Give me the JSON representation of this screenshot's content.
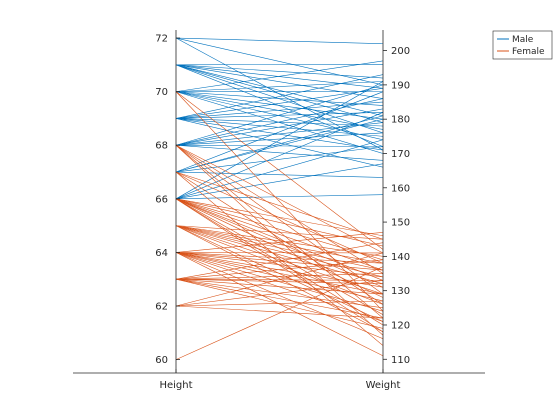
{
  "chart_data": {
    "type": "line",
    "subtype": "parallel-coordinates",
    "categories": [
      "Height",
      "Weight"
    ],
    "axes": {
      "Height": {
        "side": "left",
        "ylim": [
          59.5,
          72.3
        ],
        "ticks": [
          60,
          62,
          64,
          66,
          68,
          70,
          72
        ]
      },
      "Weight": {
        "side": "right",
        "ylim": [
          106,
          206
        ],
        "ticks": [
          110,
          120,
          130,
          140,
          150,
          160,
          170,
          180,
          190,
          200
        ]
      }
    },
    "grid": false,
    "legend_position": "top-right",
    "series": [
      {
        "name": "Male",
        "color": "#0072BD",
        "values": [
          [
            72,
            202
          ],
          [
            72,
            171
          ],
          [
            72,
            190
          ],
          [
            71,
            172
          ],
          [
            71,
            176
          ],
          [
            71,
            179
          ],
          [
            71,
            181
          ],
          [
            71,
            186
          ],
          [
            71,
            189
          ],
          [
            71,
            192
          ],
          [
            71,
            196
          ],
          [
            70,
            170
          ],
          [
            70,
            174
          ],
          [
            70,
            177
          ],
          [
            70,
            180
          ],
          [
            70,
            184
          ],
          [
            70,
            188
          ],
          [
            70,
            191
          ],
          [
            70,
            197
          ],
          [
            69,
            166
          ],
          [
            69,
            171
          ],
          [
            69,
            175
          ],
          [
            69,
            178
          ],
          [
            69,
            182
          ],
          [
            69,
            185
          ],
          [
            69,
            189
          ],
          [
            69,
            193
          ],
          [
            68,
            168
          ],
          [
            68,
            172
          ],
          [
            68,
            176
          ],
          [
            68,
            179
          ],
          [
            68,
            183
          ],
          [
            68,
            186
          ],
          [
            68,
            190
          ],
          [
            67,
            163
          ],
          [
            67,
            172
          ],
          [
            67,
            180
          ],
          [
            67,
            188
          ],
          [
            67,
            181
          ],
          [
            66,
            158
          ],
          [
            66,
            167
          ],
          [
            66,
            174
          ],
          [
            66,
            182
          ],
          [
            66,
            191
          ]
        ]
      },
      {
        "name": "Female",
        "color": "#D95319",
        "values": [
          [
            70,
            142
          ],
          [
            70,
            124
          ],
          [
            68,
            141
          ],
          [
            68,
            129
          ],
          [
            68,
            117
          ],
          [
            68,
            135
          ],
          [
            68,
            122
          ],
          [
            67,
            145
          ],
          [
            67,
            126
          ],
          [
            67,
            138
          ],
          [
            67,
            114
          ],
          [
            66,
            146
          ],
          [
            66,
            139
          ],
          [
            66,
            133
          ],
          [
            66,
            128
          ],
          [
            66,
            123
          ],
          [
            66,
            120
          ],
          [
            66,
            136
          ],
          [
            66,
            143
          ],
          [
            66,
            118
          ],
          [
            66,
            131
          ],
          [
            65,
            145
          ],
          [
            65,
            140
          ],
          [
            65,
            136
          ],
          [
            65,
            132
          ],
          [
            65,
            129
          ],
          [
            65,
            126
          ],
          [
            65,
            121
          ],
          [
            65,
            118
          ],
          [
            65,
            134
          ],
          [
            65,
            138
          ],
          [
            64,
            147
          ],
          [
            64,
            141
          ],
          [
            64,
            138
          ],
          [
            64,
            134
          ],
          [
            64,
            131
          ],
          [
            64,
            127
          ],
          [
            64,
            124
          ],
          [
            64,
            121
          ],
          [
            64,
            116
          ],
          [
            64,
            111
          ],
          [
            64,
            136
          ],
          [
            64,
            129
          ],
          [
            63,
            144
          ],
          [
            63,
            139
          ],
          [
            63,
            135
          ],
          [
            63,
            132
          ],
          [
            63,
            129
          ],
          [
            63,
            125
          ],
          [
            63,
            122
          ],
          [
            63,
            119
          ],
          [
            63,
            133
          ],
          [
            62,
            141
          ],
          [
            62,
            133
          ],
          [
            62,
            127
          ],
          [
            62,
            122
          ],
          [
            60,
            137
          ]
        ]
      }
    ]
  }
}
